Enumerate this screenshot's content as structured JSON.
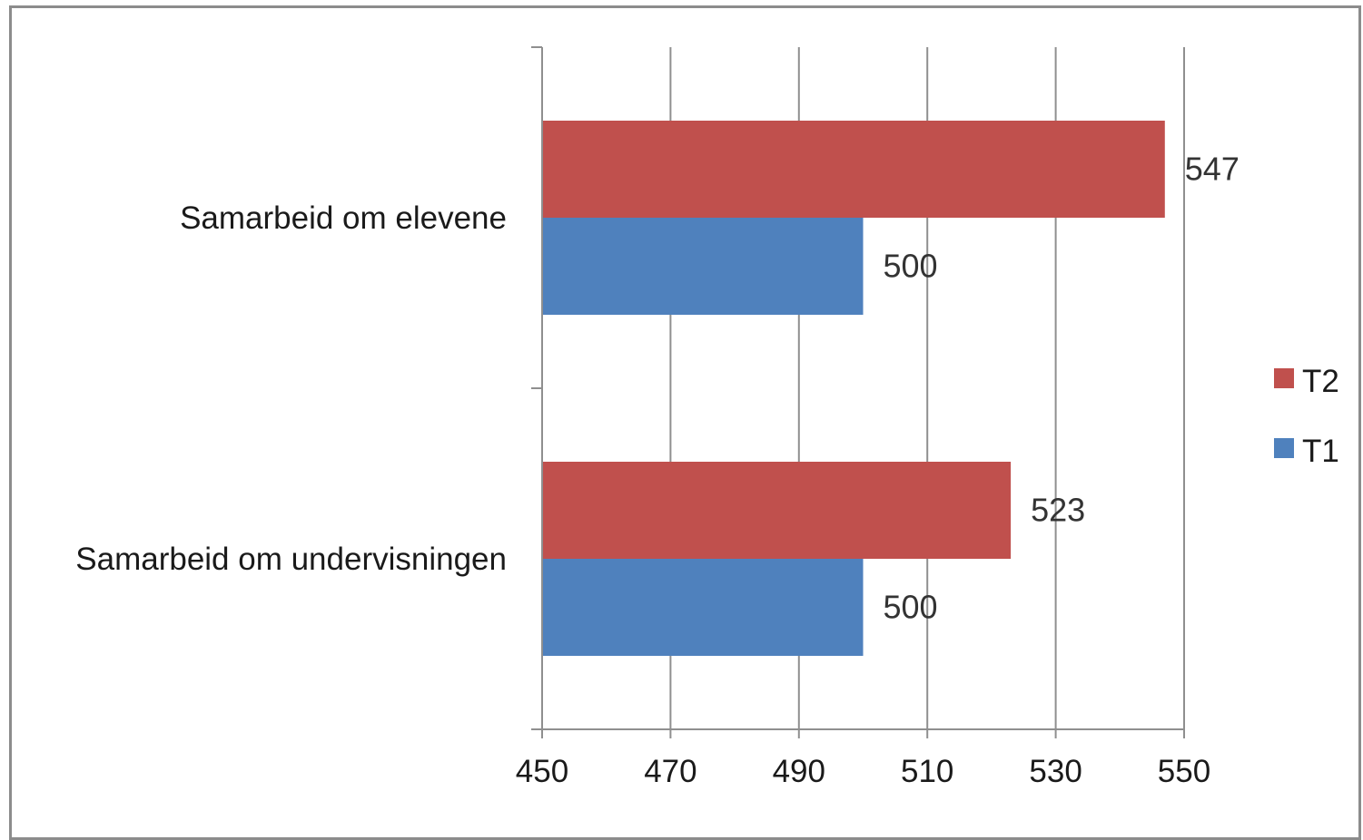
{
  "chart_data": {
    "type": "bar",
    "orientation": "horizontal",
    "categories": [
      "Samarbeid om elevene",
      "Samarbeid om undervisningen"
    ],
    "series": [
      {
        "name": "T2",
        "values": [
          547,
          523
        ],
        "color": "#c0504d"
      },
      {
        "name": "T1",
        "values": [
          500,
          500
        ],
        "color": "#4f81bd"
      }
    ],
    "xlim": [
      450,
      550
    ],
    "xticks": [
      450,
      470,
      490,
      510,
      530,
      550
    ],
    "grid": true,
    "legend_position": "right",
    "data_labels": true
  }
}
